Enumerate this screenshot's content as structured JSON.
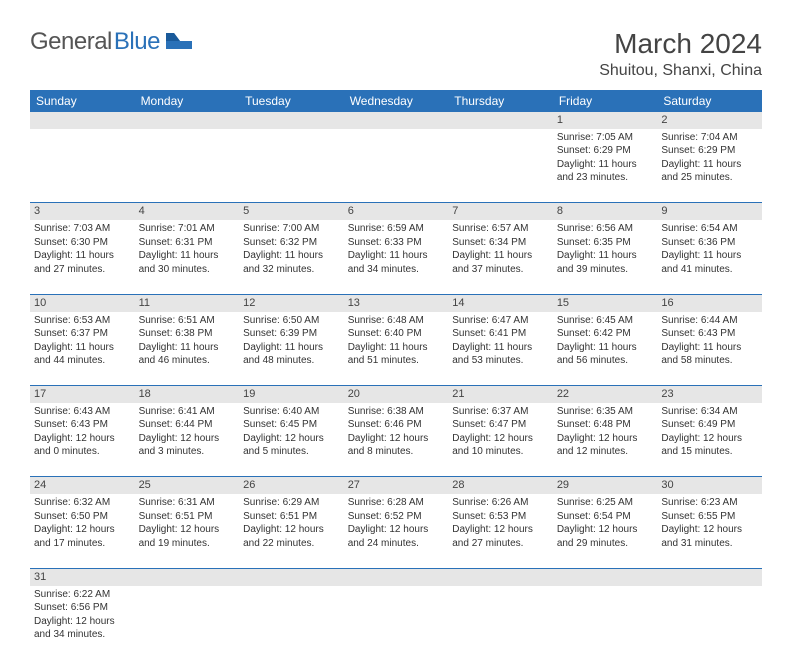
{
  "brand": {
    "part1": "General",
    "part2": "Blue"
  },
  "title": "March 2024",
  "location": "Shuitou, Shanxi, China",
  "colors": {
    "header_bg": "#2a71b8",
    "header_text": "#ffffff",
    "daynum_bg": "#e6e6e6",
    "border": "#2a71b8",
    "text": "#333333",
    "logo_gray": "#555555",
    "logo_blue": "#2a71b8",
    "page_bg": "#ffffff"
  },
  "dayHeaders": [
    "Sunday",
    "Monday",
    "Tuesday",
    "Wednesday",
    "Thursday",
    "Friday",
    "Saturday"
  ],
  "weeks": [
    [
      null,
      null,
      null,
      null,
      null,
      {
        "n": "1",
        "sr": "Sunrise: 7:05 AM",
        "ss": "Sunset: 6:29 PM",
        "d1": "Daylight: 11 hours",
        "d2": "and 23 minutes."
      },
      {
        "n": "2",
        "sr": "Sunrise: 7:04 AM",
        "ss": "Sunset: 6:29 PM",
        "d1": "Daylight: 11 hours",
        "d2": "and 25 minutes."
      }
    ],
    [
      {
        "n": "3",
        "sr": "Sunrise: 7:03 AM",
        "ss": "Sunset: 6:30 PM",
        "d1": "Daylight: 11 hours",
        "d2": "and 27 minutes."
      },
      {
        "n": "4",
        "sr": "Sunrise: 7:01 AM",
        "ss": "Sunset: 6:31 PM",
        "d1": "Daylight: 11 hours",
        "d2": "and 30 minutes."
      },
      {
        "n": "5",
        "sr": "Sunrise: 7:00 AM",
        "ss": "Sunset: 6:32 PM",
        "d1": "Daylight: 11 hours",
        "d2": "and 32 minutes."
      },
      {
        "n": "6",
        "sr": "Sunrise: 6:59 AM",
        "ss": "Sunset: 6:33 PM",
        "d1": "Daylight: 11 hours",
        "d2": "and 34 minutes."
      },
      {
        "n": "7",
        "sr": "Sunrise: 6:57 AM",
        "ss": "Sunset: 6:34 PM",
        "d1": "Daylight: 11 hours",
        "d2": "and 37 minutes."
      },
      {
        "n": "8",
        "sr": "Sunrise: 6:56 AM",
        "ss": "Sunset: 6:35 PM",
        "d1": "Daylight: 11 hours",
        "d2": "and 39 minutes."
      },
      {
        "n": "9",
        "sr": "Sunrise: 6:54 AM",
        "ss": "Sunset: 6:36 PM",
        "d1": "Daylight: 11 hours",
        "d2": "and 41 minutes."
      }
    ],
    [
      {
        "n": "10",
        "sr": "Sunrise: 6:53 AM",
        "ss": "Sunset: 6:37 PM",
        "d1": "Daylight: 11 hours",
        "d2": "and 44 minutes."
      },
      {
        "n": "11",
        "sr": "Sunrise: 6:51 AM",
        "ss": "Sunset: 6:38 PM",
        "d1": "Daylight: 11 hours",
        "d2": "and 46 minutes."
      },
      {
        "n": "12",
        "sr": "Sunrise: 6:50 AM",
        "ss": "Sunset: 6:39 PM",
        "d1": "Daylight: 11 hours",
        "d2": "and 48 minutes."
      },
      {
        "n": "13",
        "sr": "Sunrise: 6:48 AM",
        "ss": "Sunset: 6:40 PM",
        "d1": "Daylight: 11 hours",
        "d2": "and 51 minutes."
      },
      {
        "n": "14",
        "sr": "Sunrise: 6:47 AM",
        "ss": "Sunset: 6:41 PM",
        "d1": "Daylight: 11 hours",
        "d2": "and 53 minutes."
      },
      {
        "n": "15",
        "sr": "Sunrise: 6:45 AM",
        "ss": "Sunset: 6:42 PM",
        "d1": "Daylight: 11 hours",
        "d2": "and 56 minutes."
      },
      {
        "n": "16",
        "sr": "Sunrise: 6:44 AM",
        "ss": "Sunset: 6:43 PM",
        "d1": "Daylight: 11 hours",
        "d2": "and 58 minutes."
      }
    ],
    [
      {
        "n": "17",
        "sr": "Sunrise: 6:43 AM",
        "ss": "Sunset: 6:43 PM",
        "d1": "Daylight: 12 hours",
        "d2": "and 0 minutes."
      },
      {
        "n": "18",
        "sr": "Sunrise: 6:41 AM",
        "ss": "Sunset: 6:44 PM",
        "d1": "Daylight: 12 hours",
        "d2": "and 3 minutes."
      },
      {
        "n": "19",
        "sr": "Sunrise: 6:40 AM",
        "ss": "Sunset: 6:45 PM",
        "d1": "Daylight: 12 hours",
        "d2": "and 5 minutes."
      },
      {
        "n": "20",
        "sr": "Sunrise: 6:38 AM",
        "ss": "Sunset: 6:46 PM",
        "d1": "Daylight: 12 hours",
        "d2": "and 8 minutes."
      },
      {
        "n": "21",
        "sr": "Sunrise: 6:37 AM",
        "ss": "Sunset: 6:47 PM",
        "d1": "Daylight: 12 hours",
        "d2": "and 10 minutes."
      },
      {
        "n": "22",
        "sr": "Sunrise: 6:35 AM",
        "ss": "Sunset: 6:48 PM",
        "d1": "Daylight: 12 hours",
        "d2": "and 12 minutes."
      },
      {
        "n": "23",
        "sr": "Sunrise: 6:34 AM",
        "ss": "Sunset: 6:49 PM",
        "d1": "Daylight: 12 hours",
        "d2": "and 15 minutes."
      }
    ],
    [
      {
        "n": "24",
        "sr": "Sunrise: 6:32 AM",
        "ss": "Sunset: 6:50 PM",
        "d1": "Daylight: 12 hours",
        "d2": "and 17 minutes."
      },
      {
        "n": "25",
        "sr": "Sunrise: 6:31 AM",
        "ss": "Sunset: 6:51 PM",
        "d1": "Daylight: 12 hours",
        "d2": "and 19 minutes."
      },
      {
        "n": "26",
        "sr": "Sunrise: 6:29 AM",
        "ss": "Sunset: 6:51 PM",
        "d1": "Daylight: 12 hours",
        "d2": "and 22 minutes."
      },
      {
        "n": "27",
        "sr": "Sunrise: 6:28 AM",
        "ss": "Sunset: 6:52 PM",
        "d1": "Daylight: 12 hours",
        "d2": "and 24 minutes."
      },
      {
        "n": "28",
        "sr": "Sunrise: 6:26 AM",
        "ss": "Sunset: 6:53 PM",
        "d1": "Daylight: 12 hours",
        "d2": "and 27 minutes."
      },
      {
        "n": "29",
        "sr": "Sunrise: 6:25 AM",
        "ss": "Sunset: 6:54 PM",
        "d1": "Daylight: 12 hours",
        "d2": "and 29 minutes."
      },
      {
        "n": "30",
        "sr": "Sunrise: 6:23 AM",
        "ss": "Sunset: 6:55 PM",
        "d1": "Daylight: 12 hours",
        "d2": "and 31 minutes."
      }
    ],
    [
      {
        "n": "31",
        "sr": "Sunrise: 6:22 AM",
        "ss": "Sunset: 6:56 PM",
        "d1": "Daylight: 12 hours",
        "d2": "and 34 minutes."
      },
      null,
      null,
      null,
      null,
      null,
      null
    ]
  ]
}
